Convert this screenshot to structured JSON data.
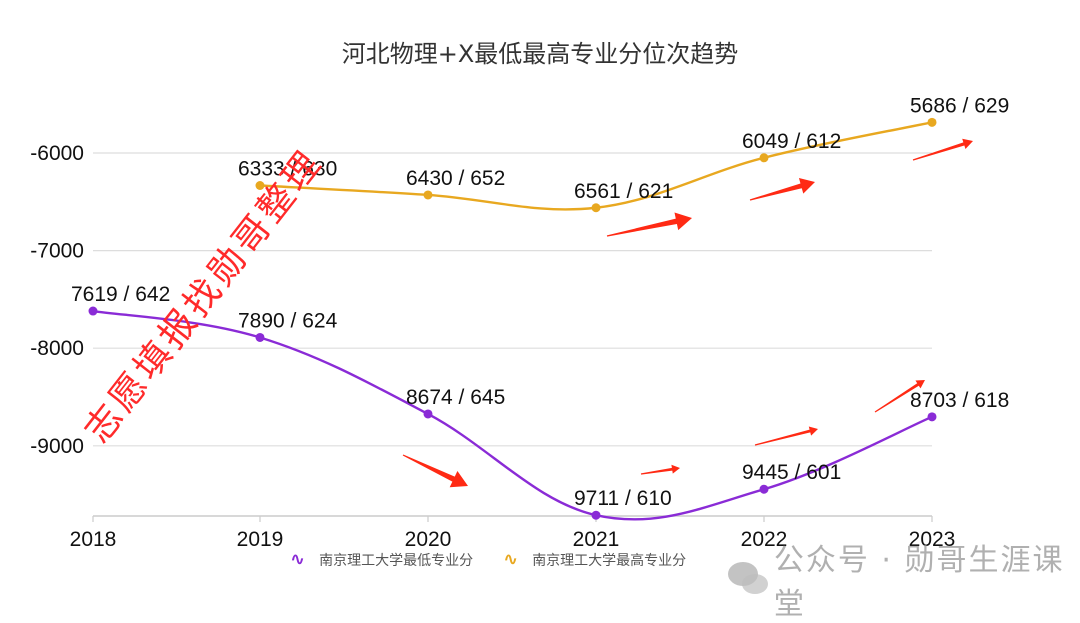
{
  "title": "河北物理+X最低最高专业分位次趋势",
  "chart_data": {
    "type": "line",
    "title": "河北物理+X最低最高专业分位次趋势",
    "xlabel": "",
    "ylabel": "",
    "categories": [
      "2018",
      "2019",
      "2020",
      "2021",
      "2022",
      "2023"
    ],
    "yticks": [
      "-6000",
      "-7000",
      "-8000",
      "-9000"
    ],
    "ylim": [
      -9715,
      -5300
    ],
    "grid": true,
    "legend_position": "bottom",
    "series": [
      {
        "name": "南京理工大学最低专业分",
        "color": "#8a2bd6",
        "rank_values": [
          -7619,
          -7890,
          -8674,
          -9711,
          -9445,
          -8703
        ],
        "labels": [
          "7619 / 642",
          "7890 / 624",
          "8674 / 645",
          "9711 / 610",
          "9445 / 601",
          "8703 / 618"
        ],
        "scores": [
          642,
          624,
          645,
          610,
          601,
          618
        ]
      },
      {
        "name": "南京理工大学最高专业分",
        "color": "#e8a820",
        "rank_values": [
          null,
          -6333,
          -6430,
          -6561,
          -6049,
          -5686
        ],
        "labels": [
          null,
          "6333 / 630",
          "6430 / 652",
          "6561 / 621",
          "6049 / 612",
          "5686 / 629"
        ],
        "scores": [
          null,
          630,
          652,
          621,
          612,
          629
        ]
      }
    ],
    "annotations": [
      "red arrows indicating trend direction",
      "watermark: 志愿填报找勋哥整理"
    ]
  },
  "legend": {
    "min_label": "南京理工大学最低专业分",
    "max_label": "南京理工大学最高专业分",
    "glyph": "∿"
  },
  "watermarks": {
    "diagonal": "志愿填报找勋哥整理",
    "footer": "公众号 · 勋哥生涯课堂"
  },
  "colors": {
    "min_series": "#8a2bd6",
    "max_series": "#e8a820",
    "arrow": "#ff2a14",
    "grid": "#dddddd"
  }
}
